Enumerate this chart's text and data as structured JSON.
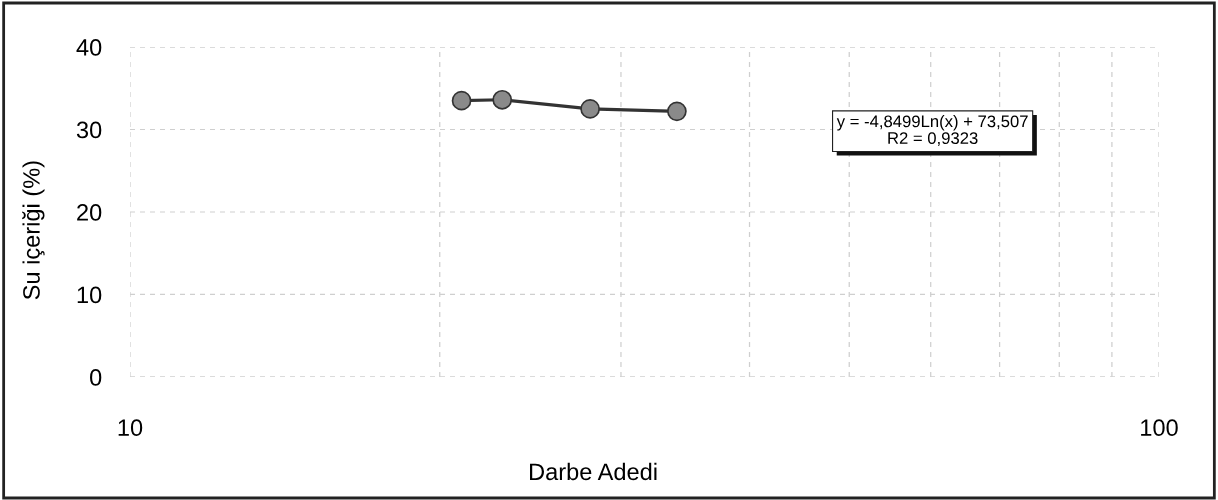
{
  "chart_data": {
    "type": "line",
    "xlabel": "Darbe Adedi",
    "ylabel": "Su içeriği (%)",
    "x": [
      21,
      23,
      28,
      34
    ],
    "series": [
      {
        "color": "#333333",
        "values": [
          33.5,
          33.6,
          32.5,
          32.2
        ]
      }
    ],
    "log": "x",
    "xlim": [
      10,
      100
    ],
    "xticks": [
      10,
      {
        "value": 20,
        "label": null
      },
      {
        "value": 30,
        "label": null
      },
      {
        "value": 40,
        "label": null
      },
      {
        "value": 50,
        "label": null
      },
      {
        "value": 60,
        "label": null
      },
      {
        "value": 70,
        "label": null
      },
      {
        "value": 80,
        "label": null
      },
      {
        "value": 90,
        "label": null
      },
      100
    ],
    "ylim": [
      0,
      40
    ],
    "yticks": [
      0,
      10,
      20,
      30,
      40
    ],
    "grid": true,
    "marker": "circle",
    "line_style": "solid",
    "annotations": [
      "y = -4,8499Ln(x) + 73,507\nR2 = 0,9323"
    ]
  }
}
